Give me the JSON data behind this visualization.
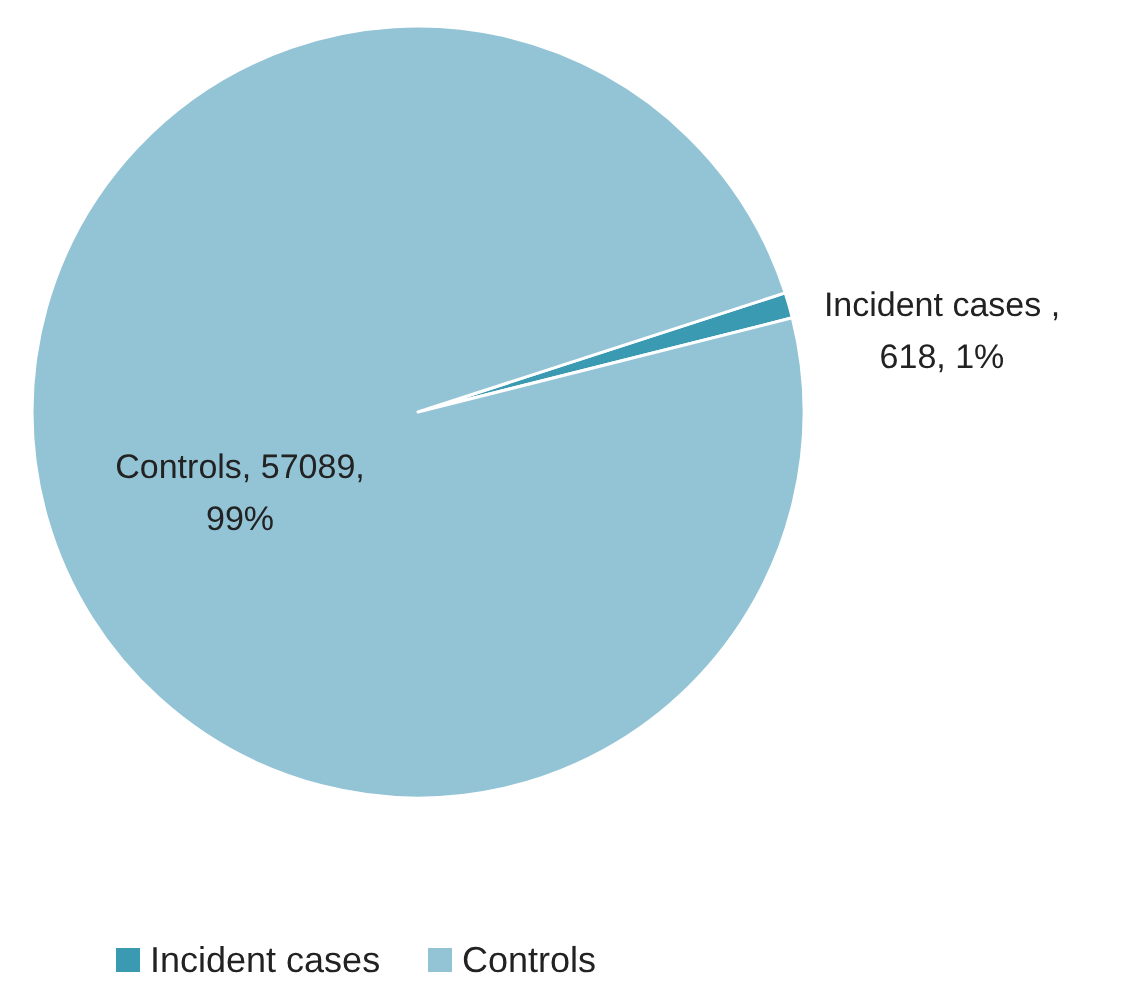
{
  "chart_data": {
    "type": "pie",
    "categories": [
      "Incident cases",
      "Controls"
    ],
    "values": [
      618,
      57089
    ],
    "colors": [
      "#3a9ab2",
      "#93c4d5"
    ],
    "value_labels": [
      "Incident cases , 618, 1%",
      "Controls, 57089, 99%"
    ],
    "legend": "bottom"
  }
}
